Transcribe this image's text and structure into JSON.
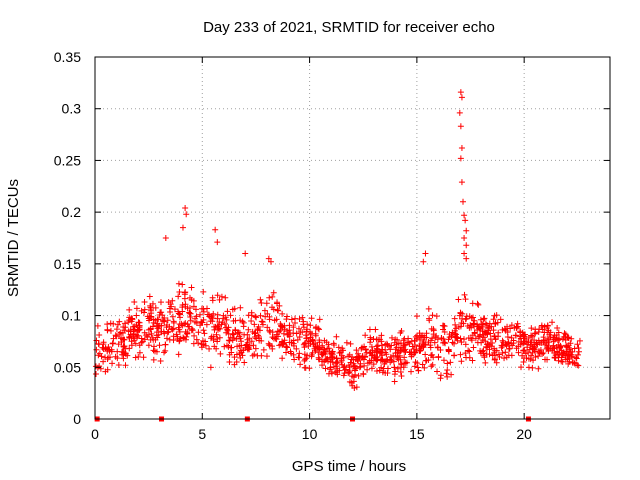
{
  "chart_data": {
    "type": "scatter",
    "title": "Day 233 of 2021, SRMTID for receiver echo",
    "xlabel": "GPS time / hours",
    "ylabel": "SRMTID / TECUs",
    "xlim": [
      0,
      24
    ],
    "ylim": [
      0,
      0.35
    ],
    "xticks": [
      0,
      5,
      10,
      15,
      20
    ],
    "yticks": [
      0,
      0.05,
      0.1,
      0.15,
      0.2,
      0.25,
      0.3,
      0.35
    ],
    "xtick_labels": [
      "0",
      "5",
      "10",
      "15",
      "20"
    ],
    "ytick_labels": [
      "0",
      "0.05",
      "0.1",
      "0.15",
      "0.2",
      "0.25",
      "0.3",
      "0.35"
    ],
    "grid": true,
    "marker": "plus",
    "color": "#ff0000",
    "baseline_markers_x": [
      0.1,
      3.1,
      7.1,
      12.0,
      20.2
    ],
    "envelope": {
      "x": [
        0.0,
        0.5,
        1.0,
        1.5,
        2.0,
        2.5,
        3.0,
        3.5,
        4.0,
        4.5,
        5.0,
        5.5,
        6.0,
        6.5,
        7.0,
        7.5,
        8.0,
        8.5,
        9.0,
        9.5,
        10.0,
        10.5,
        11.0,
        11.5,
        12.0,
        12.5,
        13.0,
        13.5,
        14.0,
        14.5,
        15.0,
        15.5,
        16.0,
        16.5,
        17.0,
        17.5,
        18.0,
        18.5,
        19.0,
        19.5,
        20.0,
        20.5,
        21.0,
        21.5,
        22.0,
        22.5
      ],
      "center": [
        0.06,
        0.07,
        0.075,
        0.08,
        0.085,
        0.09,
        0.085,
        0.09,
        0.1,
        0.095,
        0.09,
        0.085,
        0.085,
        0.08,
        0.075,
        0.08,
        0.09,
        0.085,
        0.08,
        0.075,
        0.075,
        0.07,
        0.06,
        0.055,
        0.05,
        0.06,
        0.065,
        0.06,
        0.06,
        0.065,
        0.07,
        0.075,
        0.07,
        0.065,
        0.09,
        0.09,
        0.08,
        0.075,
        0.075,
        0.075,
        0.07,
        0.075,
        0.075,
        0.07,
        0.065,
        0.06
      ],
      "spread": [
        0.03,
        0.035,
        0.04,
        0.04,
        0.04,
        0.045,
        0.04,
        0.045,
        0.05,
        0.045,
        0.045,
        0.045,
        0.045,
        0.04,
        0.04,
        0.04,
        0.045,
        0.04,
        0.035,
        0.035,
        0.035,
        0.03,
        0.03,
        0.025,
        0.025,
        0.03,
        0.03,
        0.03,
        0.03,
        0.03,
        0.035,
        0.04,
        0.04,
        0.035,
        0.05,
        0.04,
        0.035,
        0.035,
        0.03,
        0.03,
        0.03,
        0.035,
        0.035,
        0.03,
        0.025,
        0.025
      ]
    },
    "peaks": [
      {
        "x": 4.2,
        "y": 0.204
      },
      {
        "x": 4.25,
        "y": 0.198
      },
      {
        "x": 4.1,
        "y": 0.185
      },
      {
        "x": 5.6,
        "y": 0.183
      },
      {
        "x": 5.7,
        "y": 0.171
      },
      {
        "x": 3.3,
        "y": 0.175
      },
      {
        "x": 7.0,
        "y": 0.16
      },
      {
        "x": 8.1,
        "y": 0.155
      },
      {
        "x": 8.2,
        "y": 0.152
      },
      {
        "x": 15.4,
        "y": 0.16
      },
      {
        "x": 15.3,
        "y": 0.152
      },
      {
        "x": 17.05,
        "y": 0.316
      },
      {
        "x": 17.1,
        "y": 0.311
      },
      {
        "x": 17.0,
        "y": 0.296
      },
      {
        "x": 17.05,
        "y": 0.283
      },
      {
        "x": 17.1,
        "y": 0.262
      },
      {
        "x": 17.05,
        "y": 0.252
      },
      {
        "x": 17.1,
        "y": 0.229
      },
      {
        "x": 17.15,
        "y": 0.21
      },
      {
        "x": 17.2,
        "y": 0.197
      },
      {
        "x": 17.25,
        "y": 0.192
      },
      {
        "x": 17.3,
        "y": 0.182
      },
      {
        "x": 17.2,
        "y": 0.175
      },
      {
        "x": 17.3,
        "y": 0.168
      },
      {
        "x": 17.2,
        "y": 0.16
      },
      {
        "x": 17.3,
        "y": 0.155
      }
    ],
    "sample_count": 1400,
    "x_end": 22.6
  }
}
